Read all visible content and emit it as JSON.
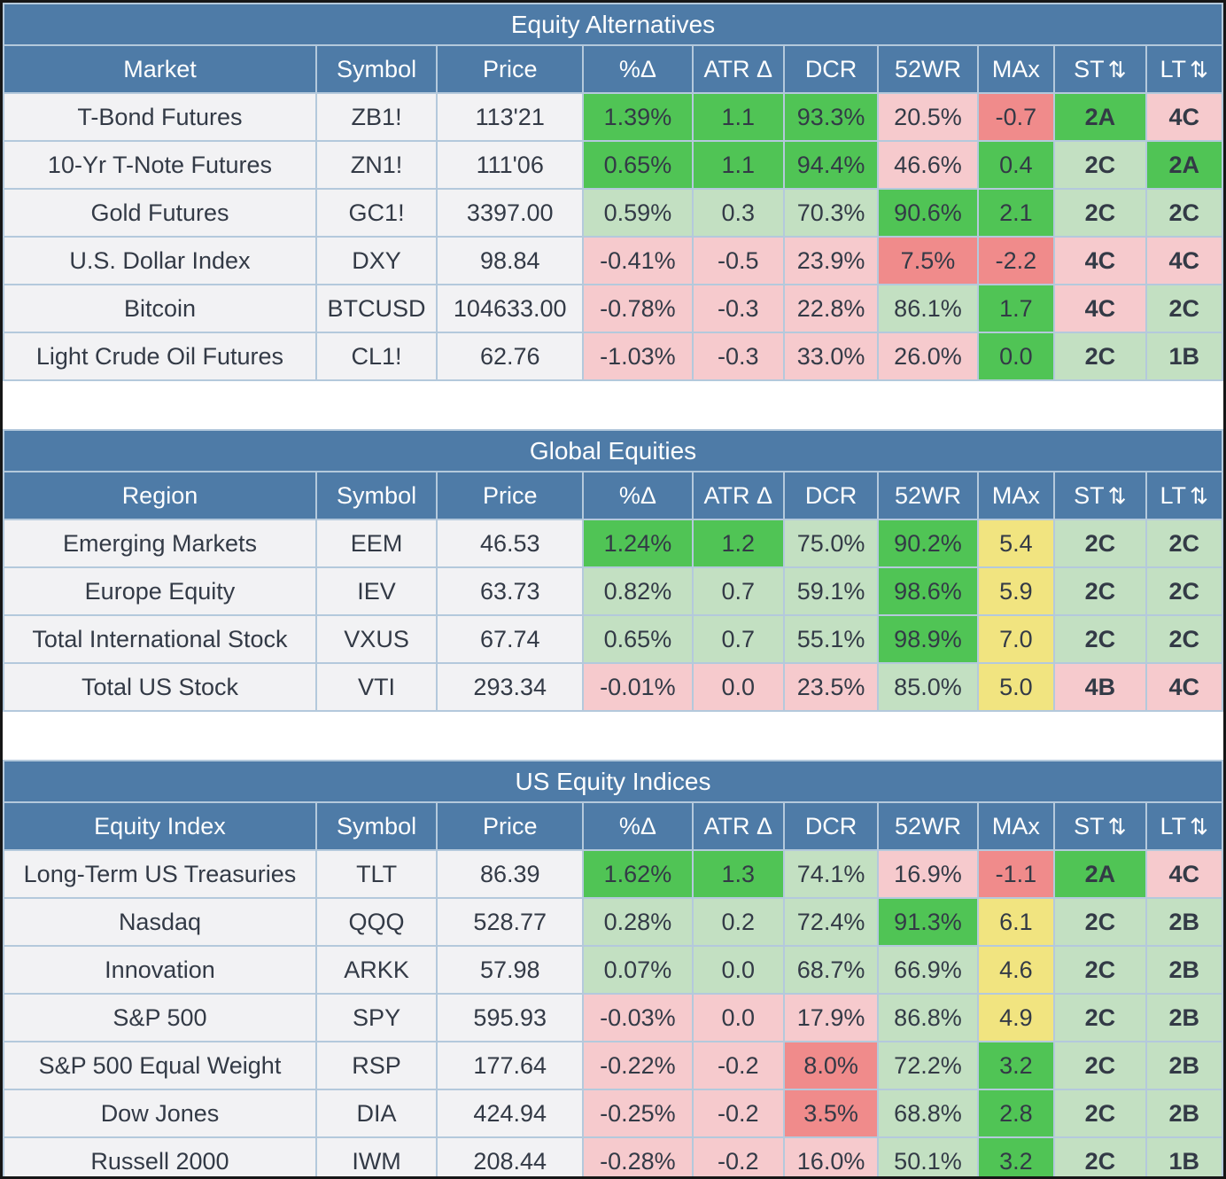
{
  "palette": {
    "header_blue": "#4e7ba7",
    "bright_green": "#50c455",
    "light_green": "#c3e0c2",
    "light_pink": "#f6cacd",
    "salmon_red": "#f08b8b",
    "yellow": "#f1e480",
    "row_bg": "#f2f2f4",
    "grid_line": "#b4c9dc",
    "outer_border": "#161616",
    "text_dark": "#333a46",
    "header_text": "#ffffff"
  },
  "sort_icon": "⇅",
  "color_legend": {
    "g": "bright_green",
    "lg": "light_green",
    "p": "light_pink",
    "r": "salmon_red",
    "y": "yellow"
  },
  "tables": [
    {
      "title": "Equity Alternatives",
      "headers": [
        {
          "label": "Market",
          "sortable": false
        },
        {
          "label": "Symbol",
          "sortable": false
        },
        {
          "label": "Price",
          "sortable": false
        },
        {
          "label": "%Δ",
          "sortable": false
        },
        {
          "label": "ATR Δ",
          "sortable": false
        },
        {
          "label": "DCR",
          "sortable": false
        },
        {
          "label": "52WR",
          "sortable": false
        },
        {
          "label": "MAx",
          "sortable": false
        },
        {
          "label": "ST",
          "sortable": true
        },
        {
          "label": "LT",
          "sortable": true
        }
      ],
      "rows": [
        {
          "label": "T-Bond Futures",
          "symbol": "ZB1!",
          "price": "113'21",
          "metrics": [
            [
              "1.39%",
              "g"
            ],
            [
              "1.1",
              "g"
            ],
            [
              "93.3%",
              "g"
            ],
            [
              "20.5%",
              "p"
            ],
            [
              "-0.7",
              "r"
            ],
            [
              "2A",
              "g"
            ],
            [
              "4C",
              "p"
            ]
          ]
        },
        {
          "label": "10-Yr T-Note Futures",
          "symbol": "ZN1!",
          "price": "111'06",
          "metrics": [
            [
              "0.65%",
              "g"
            ],
            [
              "1.1",
              "g"
            ],
            [
              "94.4%",
              "g"
            ],
            [
              "46.6%",
              "p"
            ],
            [
              "0.4",
              "g"
            ],
            [
              "2C",
              "lg"
            ],
            [
              "2A",
              "g"
            ]
          ]
        },
        {
          "label": "Gold Futures",
          "symbol": "GC1!",
          "price": "3397.00",
          "metrics": [
            [
              "0.59%",
              "lg"
            ],
            [
              "0.3",
              "lg"
            ],
            [
              "70.3%",
              "lg"
            ],
            [
              "90.6%",
              "g"
            ],
            [
              "2.1",
              "g"
            ],
            [
              "2C",
              "lg"
            ],
            [
              "2C",
              "lg"
            ]
          ]
        },
        {
          "label": "U.S. Dollar Index",
          "symbol": "DXY",
          "price": "98.84",
          "metrics": [
            [
              "-0.41%",
              "p"
            ],
            [
              "-0.5",
              "p"
            ],
            [
              "23.9%",
              "p"
            ],
            [
              "7.5%",
              "r"
            ],
            [
              "-2.2",
              "r"
            ],
            [
              "4C",
              "p"
            ],
            [
              "4C",
              "p"
            ]
          ]
        },
        {
          "label": "Bitcoin",
          "symbol": "BTCUSD",
          "price": "104633.00",
          "metrics": [
            [
              "-0.78%",
              "p"
            ],
            [
              "-0.3",
              "p"
            ],
            [
              "22.8%",
              "p"
            ],
            [
              "86.1%",
              "lg"
            ],
            [
              "1.7",
              "g"
            ],
            [
              "4C",
              "p"
            ],
            [
              "2C",
              "lg"
            ]
          ]
        },
        {
          "label": "Light Crude Oil Futures",
          "symbol": "CL1!",
          "price": "62.76",
          "metrics": [
            [
              "-1.03%",
              "p"
            ],
            [
              "-0.3",
              "p"
            ],
            [
              "33.0%",
              "p"
            ],
            [
              "26.0%",
              "p"
            ],
            [
              "0.0",
              "g"
            ],
            [
              "2C",
              "lg"
            ],
            [
              "1B",
              "lg"
            ]
          ]
        }
      ]
    },
    {
      "title": "Global Equities",
      "headers": [
        {
          "label": "Region",
          "sortable": false
        },
        {
          "label": "Symbol",
          "sortable": false
        },
        {
          "label": "Price",
          "sortable": false
        },
        {
          "label": "%Δ",
          "sortable": false
        },
        {
          "label": "ATR Δ",
          "sortable": false
        },
        {
          "label": "DCR",
          "sortable": false
        },
        {
          "label": "52WR",
          "sortable": false
        },
        {
          "label": "MAx",
          "sortable": false
        },
        {
          "label": "ST",
          "sortable": true
        },
        {
          "label": "LT",
          "sortable": true
        }
      ],
      "rows": [
        {
          "label": "Emerging Markets",
          "symbol": "EEM",
          "price": "46.53",
          "metrics": [
            [
              "1.24%",
              "g"
            ],
            [
              "1.2",
              "g"
            ],
            [
              "75.0%",
              "lg"
            ],
            [
              "90.2%",
              "g"
            ],
            [
              "5.4",
              "y"
            ],
            [
              "2C",
              "lg"
            ],
            [
              "2C",
              "lg"
            ]
          ]
        },
        {
          "label": "Europe Equity",
          "symbol": "IEV",
          "price": "63.73",
          "metrics": [
            [
              "0.82%",
              "lg"
            ],
            [
              "0.7",
              "lg"
            ],
            [
              "59.1%",
              "lg"
            ],
            [
              "98.6%",
              "g"
            ],
            [
              "5.9",
              "y"
            ],
            [
              "2C",
              "lg"
            ],
            [
              "2C",
              "lg"
            ]
          ]
        },
        {
          "label": "Total International Stock",
          "symbol": "VXUS",
          "price": "67.74",
          "metrics": [
            [
              "0.65%",
              "lg"
            ],
            [
              "0.7",
              "lg"
            ],
            [
              "55.1%",
              "lg"
            ],
            [
              "98.9%",
              "g"
            ],
            [
              "7.0",
              "y"
            ],
            [
              "2C",
              "lg"
            ],
            [
              "2C",
              "lg"
            ]
          ]
        },
        {
          "label": "Total US Stock",
          "symbol": "VTI",
          "price": "293.34",
          "metrics": [
            [
              "-0.01%",
              "p"
            ],
            [
              "0.0",
              "p"
            ],
            [
              "23.5%",
              "p"
            ],
            [
              "85.0%",
              "lg"
            ],
            [
              "5.0",
              "y"
            ],
            [
              "4B",
              "p"
            ],
            [
              "4C",
              "p"
            ]
          ]
        }
      ]
    },
    {
      "title": "US Equity Indices",
      "headers": [
        {
          "label": "Equity Index",
          "sortable": false
        },
        {
          "label": "Symbol",
          "sortable": false
        },
        {
          "label": "Price",
          "sortable": false
        },
        {
          "label": "%Δ",
          "sortable": false
        },
        {
          "label": "ATR Δ",
          "sortable": false
        },
        {
          "label": "DCR",
          "sortable": false
        },
        {
          "label": "52WR",
          "sortable": false
        },
        {
          "label": "MAx",
          "sortable": false
        },
        {
          "label": "ST",
          "sortable": true
        },
        {
          "label": "LT",
          "sortable": true
        }
      ],
      "rows": [
        {
          "label": "Long-Term US Treasuries",
          "symbol": "TLT",
          "price": "86.39",
          "metrics": [
            [
              "1.62%",
              "g"
            ],
            [
              "1.3",
              "g"
            ],
            [
              "74.1%",
              "lg"
            ],
            [
              "16.9%",
              "p"
            ],
            [
              "-1.1",
              "r"
            ],
            [
              "2A",
              "g"
            ],
            [
              "4C",
              "p"
            ]
          ]
        },
        {
          "label": "Nasdaq",
          "symbol": "QQQ",
          "price": "528.77",
          "metrics": [
            [
              "0.28%",
              "lg"
            ],
            [
              "0.2",
              "lg"
            ],
            [
              "72.4%",
              "lg"
            ],
            [
              "91.3%",
              "g"
            ],
            [
              "6.1",
              "y"
            ],
            [
              "2C",
              "lg"
            ],
            [
              "2B",
              "lg"
            ]
          ]
        },
        {
          "label": "Innovation",
          "symbol": "ARKK",
          "price": "57.98",
          "metrics": [
            [
              "0.07%",
              "lg"
            ],
            [
              "0.0",
              "lg"
            ],
            [
              "68.7%",
              "lg"
            ],
            [
              "66.9%",
              "lg"
            ],
            [
              "4.6",
              "y"
            ],
            [
              "2C",
              "lg"
            ],
            [
              "2B",
              "lg"
            ]
          ]
        },
        {
          "label": "S&P 500",
          "symbol": "SPY",
          "price": "595.93",
          "metrics": [
            [
              "-0.03%",
              "p"
            ],
            [
              "0.0",
              "p"
            ],
            [
              "17.9%",
              "p"
            ],
            [
              "86.8%",
              "lg"
            ],
            [
              "4.9",
              "y"
            ],
            [
              "2C",
              "lg"
            ],
            [
              "2B",
              "lg"
            ]
          ]
        },
        {
          "label": "S&P 500 Equal Weight",
          "symbol": "RSP",
          "price": "177.64",
          "metrics": [
            [
              "-0.22%",
              "p"
            ],
            [
              "-0.2",
              "p"
            ],
            [
              "8.0%",
              "r"
            ],
            [
              "72.2%",
              "lg"
            ],
            [
              "3.2",
              "g"
            ],
            [
              "2C",
              "lg"
            ],
            [
              "2B",
              "lg"
            ]
          ]
        },
        {
          "label": "Dow Jones",
          "symbol": "DIA",
          "price": "424.94",
          "metrics": [
            [
              "-0.25%",
              "p"
            ],
            [
              "-0.2",
              "p"
            ],
            [
              "3.5%",
              "r"
            ],
            [
              "68.8%",
              "lg"
            ],
            [
              "2.8",
              "g"
            ],
            [
              "2C",
              "lg"
            ],
            [
              "2B",
              "lg"
            ]
          ]
        },
        {
          "label": "Russell 2000",
          "symbol": "IWM",
          "price": "208.44",
          "metrics": [
            [
              "-0.28%",
              "p"
            ],
            [
              "-0.2",
              "p"
            ],
            [
              "16.0%",
              "p"
            ],
            [
              "50.1%",
              "lg"
            ],
            [
              "3.2",
              "g"
            ],
            [
              "2C",
              "lg"
            ],
            [
              "1B",
              "lg"
            ]
          ]
        }
      ]
    }
  ]
}
